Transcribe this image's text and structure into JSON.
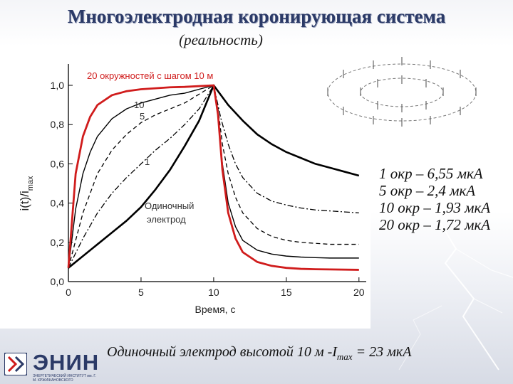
{
  "title": "Многоэлектродная коронирующая система",
  "subtitle": "(реальность)",
  "chart_data": {
    "type": "line",
    "xlabel": "Время,  с",
    "ylabel_main": "i(t)/i",
    "ylabel_sub": "max",
    "xlim": [
      0,
      20.5
    ],
    "ylim": [
      0,
      1.0
    ],
    "x_ticks": [
      "0",
      "5",
      "10",
      "15",
      "20"
    ],
    "y_ticks": [
      "0,0",
      "0,2",
      "0,4",
      "0,6",
      "0,8",
      "1,0"
    ],
    "legend_title": "20 окружностей с шагом 10 м",
    "annotations": [
      "10",
      "5",
      "1",
      "Одиночный",
      "электрод"
    ],
    "series": [
      {
        "label": "20",
        "color": "#d01c1c",
        "style": "solid",
        "width": 2.8,
        "x": [
          0,
          0.5,
          1,
          1.5,
          2,
          3,
          4,
          5,
          6,
          7,
          8,
          10,
          10.3,
          10.6,
          11,
          11.5,
          12,
          13,
          14,
          15,
          16,
          17,
          18,
          20
        ],
        "y": [
          0.07,
          0.55,
          0.74,
          0.84,
          0.9,
          0.95,
          0.97,
          0.98,
          0.985,
          0.99,
          0.992,
          1.0,
          0.85,
          0.57,
          0.35,
          0.22,
          0.15,
          0.1,
          0.08,
          0.07,
          0.065,
          0.063,
          0.062,
          0.06
        ]
      },
      {
        "label": "10",
        "color": "#000000",
        "style": "solid",
        "width": 1.4,
        "x": [
          0,
          0.5,
          1,
          1.5,
          2,
          3,
          4,
          5,
          6,
          7,
          8,
          10,
          10.3,
          10.6,
          11,
          11.5,
          12,
          13,
          14,
          15,
          16,
          17,
          18,
          20
        ],
        "y": [
          0.07,
          0.37,
          0.55,
          0.66,
          0.74,
          0.83,
          0.88,
          0.91,
          0.93,
          0.95,
          0.96,
          1.0,
          0.85,
          0.6,
          0.4,
          0.28,
          0.21,
          0.16,
          0.14,
          0.13,
          0.125,
          0.122,
          0.12,
          0.12
        ]
      },
      {
        "label": "5",
        "color": "#000000",
        "style": "dashed",
        "width": 1.3,
        "x": [
          0,
          1,
          2,
          3,
          4,
          5,
          6,
          7,
          8,
          10,
          10.3,
          10.6,
          11,
          11.5,
          12,
          13,
          14,
          15,
          16,
          17,
          18,
          20
        ],
        "y": [
          0.07,
          0.35,
          0.55,
          0.67,
          0.75,
          0.81,
          0.85,
          0.88,
          0.91,
          1.0,
          0.88,
          0.7,
          0.55,
          0.43,
          0.35,
          0.27,
          0.23,
          0.21,
          0.2,
          0.195,
          0.19,
          0.19
        ]
      },
      {
        "label": "1",
        "color": "#000000",
        "style": "dashdot",
        "width": 1.3,
        "x": [
          0,
          1,
          2,
          3,
          4,
          5,
          6,
          7,
          8,
          9,
          10,
          10.5,
          11,
          11.5,
          12,
          13,
          14,
          15,
          16,
          17,
          18,
          20
        ],
        "y": [
          0.07,
          0.22,
          0.35,
          0.45,
          0.53,
          0.6,
          0.67,
          0.73,
          0.8,
          0.88,
          1.0,
          0.83,
          0.7,
          0.6,
          0.53,
          0.45,
          0.41,
          0.39,
          0.375,
          0.365,
          0.36,
          0.35
        ]
      },
      {
        "label": "Одиночный электрод",
        "color": "#000000",
        "style": "solid",
        "width": 2.6,
        "x": [
          0,
          1,
          2,
          3,
          4,
          5,
          6,
          7,
          8,
          9,
          10,
          11,
          12,
          13,
          14,
          15,
          16,
          17,
          18,
          19,
          20
        ],
        "y": [
          0.07,
          0.13,
          0.19,
          0.25,
          0.31,
          0.38,
          0.47,
          0.57,
          0.69,
          0.82,
          1.0,
          0.9,
          0.82,
          0.75,
          0.7,
          0.66,
          0.63,
          0.6,
          0.58,
          0.56,
          0.54
        ]
      }
    ]
  },
  "results": [
    "1 окр – 6,55 мкА",
    "5 окр – 2,4 мкА",
    "10 окр – 1,93 мкА",
    "20 окр – 1,72 мкА"
  ],
  "footer": {
    "text": "Одиночный электрод высотой 10 м  -I",
    "sub": "max",
    "tail": " = 23 мкА"
  },
  "logo": {
    "name": "ЭНИН",
    "subtitle": "ЭНЕРГЕТИЧЕСКИЙ ИНСТИТУТ им. Г. М. КРЖИЖАНОВСКОГО",
    "color": "#2b3a67",
    "accent": "#d01c1c"
  },
  "colors": {
    "title": "#2b3a67",
    "highlight": "#d01c1c"
  }
}
